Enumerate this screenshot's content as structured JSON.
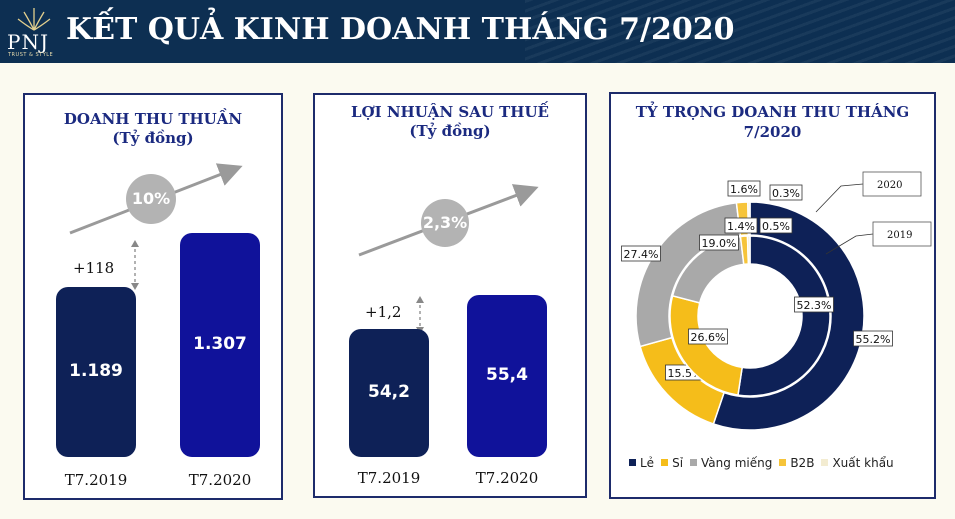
{
  "header": {
    "title": "KẾT QUẢ KINH DOANH THÁNG 7/2020",
    "logo_text": "PNJ",
    "logo_sub": "TRUST & STYLE"
  },
  "colors": {
    "header_bg": "#0d2f52",
    "bar_2019": "#0e2157",
    "bar_2020": "#10129a",
    "le": "#0e2157",
    "si": "#f5bd1a",
    "vang_mieng": "#a9a9a9",
    "b2b": "#f6c43a",
    "xuat_khau": "#f3ecd1"
  },
  "panels": {
    "revenue": {
      "title": "DOANH THU THUẦN",
      "subtitle": "(Tỷ đồng)",
      "growth": "10%",
      "delta": "+118"
    },
    "profit": {
      "title": "LỢI NHUẬN SAU THUẾ",
      "subtitle": "(Tỷ đồng)",
      "growth": "2,3%",
      "delta": "+1,2"
    },
    "share": {
      "title_line1": "TỶ TRỌNG DOANH THU THÁNG",
      "title_line2": "7/2020",
      "label_2020": "2020",
      "label_2019": "2019"
    }
  },
  "chart_data": [
    {
      "type": "bar",
      "title": "DOANH THU THUẦN",
      "subtitle": "(Tỷ đồng)",
      "categories": [
        "T7.2019",
        "T7.2020"
      ],
      "values": [
        1189,
        1307
      ],
      "value_labels": [
        "1.189",
        "1.307"
      ],
      "growth_label": "10%",
      "delta_label": "+118",
      "ylim": [
        0,
        1600
      ]
    },
    {
      "type": "bar",
      "title": "LỢI NHUẬN SAU THUẾ",
      "subtitle": "(Tỷ đồng)",
      "categories": [
        "T7.2019",
        "T7.2020"
      ],
      "values": [
        54.2,
        55.4
      ],
      "value_labels": [
        "54,2",
        "55,4"
      ],
      "growth_label": "2,3%",
      "delta_label": "+1,2",
      "ylim": [
        0,
        100
      ]
    },
    {
      "type": "pie",
      "title": "TỶ TRỌNG DOANH THU THÁNG 7/2020",
      "categories": [
        "Lẻ",
        "Sỉ",
        "Vàng miếng",
        "B2B",
        "Xuất khẩu"
      ],
      "series": [
        {
          "name": "2020",
          "values": [
            55.2,
            15.5,
            27.4,
            1.6,
            0.3
          ],
          "value_labels": [
            "55.2%",
            "15.5%",
            "27.4%",
            "1.6%",
            "0.3%"
          ]
        },
        {
          "name": "2019",
          "values": [
            52.3,
            26.6,
            19.0,
            1.4,
            0.5
          ],
          "value_labels": [
            "52.3%",
            "26.6%",
            "19.0%",
            "1.4%",
            "0.5%"
          ]
        }
      ],
      "legend": "bottom"
    }
  ]
}
